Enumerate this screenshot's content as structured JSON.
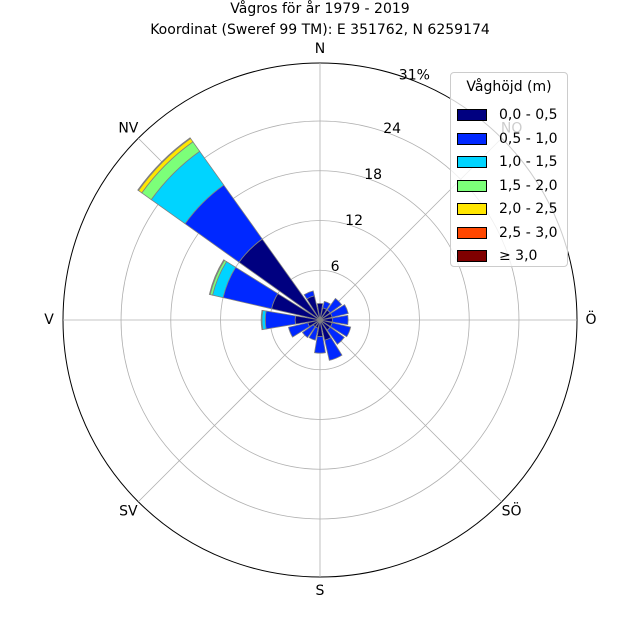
{
  "chart_data": {
    "type": "windrose",
    "title": "Vågros för år 1979 - 2019",
    "subtitle": "Koordinat (Sweref 99 TM): E 351762, N 6259174",
    "directions": [
      "N",
      "NO",
      "Ö",
      "SÖ",
      "S",
      "SV",
      "V",
      "NV"
    ],
    "radial_ticks": [
      "6",
      "12",
      "18",
      "24",
      "31%"
    ],
    "radial_tick_values": [
      6,
      12,
      18,
      24,
      31
    ],
    "radial_max": 31,
    "legend_title": "Våghöjd (m)",
    "bins": [
      "0,0 - 0,5",
      "0,5 - 1,0",
      "1,0 - 1,5",
      "1,5 - 2,0",
      "2,0 - 2,5",
      "2,5 - 3,0",
      "≥ 3,0"
    ],
    "colors": [
      "#000080",
      "#0028ff",
      "#00d4ff",
      "#7cff79",
      "#ffe600",
      "#ff4700",
      "#800000"
    ],
    "sector_angles_deg": [
      0,
      22.5,
      45,
      67.5,
      90,
      112.5,
      135,
      157.5,
      180,
      202.5,
      225,
      247.5,
      270,
      292.5,
      315,
      337.5
    ],
    "sectors": [
      {
        "dir_deg": 0,
        "values": [
          2.0,
          0,
          0,
          0,
          0,
          0,
          0
        ]
      },
      {
        "dir_deg": 22.5,
        "values": [
          1.5,
          0.8,
          0,
          0,
          0,
          0,
          0
        ]
      },
      {
        "dir_deg": 45,
        "values": [
          1.5,
          1.7,
          0,
          0,
          0,
          0,
          0
        ]
      },
      {
        "dir_deg": 67.5,
        "values": [
          1.5,
          2.0,
          0,
          0,
          0,
          0,
          0
        ]
      },
      {
        "dir_deg": 90,
        "values": [
          1.5,
          1.9,
          0,
          0,
          0,
          0,
          0
        ]
      },
      {
        "dir_deg": 112.5,
        "values": [
          1.5,
          2.3,
          0,
          0,
          0,
          0,
          0
        ]
      },
      {
        "dir_deg": 135,
        "values": [
          1.5,
          2.1,
          0,
          0,
          0,
          0,
          0
        ]
      },
      {
        "dir_deg": 157.5,
        "values": [
          2.5,
          2.5,
          0,
          0,
          0,
          0,
          0
        ]
      },
      {
        "dir_deg": 180,
        "values": [
          2.0,
          2.0,
          0,
          0,
          0,
          0,
          0
        ]
      },
      {
        "dir_deg": 202.5,
        "values": [
          1.0,
          1.5,
          0,
          0,
          0,
          0,
          0
        ]
      },
      {
        "dir_deg": 225,
        "values": [
          1.0,
          1.6,
          0,
          0,
          0,
          0,
          0
        ]
      },
      {
        "dir_deg": 247.5,
        "values": [
          1.5,
          2.4,
          0,
          0,
          0,
          0,
          0
        ]
      },
      {
        "dir_deg": 270,
        "values": [
          3.0,
          3.6,
          0.4,
          0.1,
          0,
          0,
          0
        ]
      },
      {
        "dir_deg": 292.5,
        "values": [
          6.0,
          6.0,
          1.3,
          0.3,
          0.1,
          0,
          0
        ]
      },
      {
        "dir_deg": 315,
        "values": [
          12.0,
          8.0,
          5.0,
          1.4,
          0.5,
          0.1,
          0
        ]
      },
      {
        "dir_deg": 337.5,
        "values": [
          3.0,
          0.6,
          0,
          0,
          0,
          0,
          0
        ]
      }
    ]
  }
}
